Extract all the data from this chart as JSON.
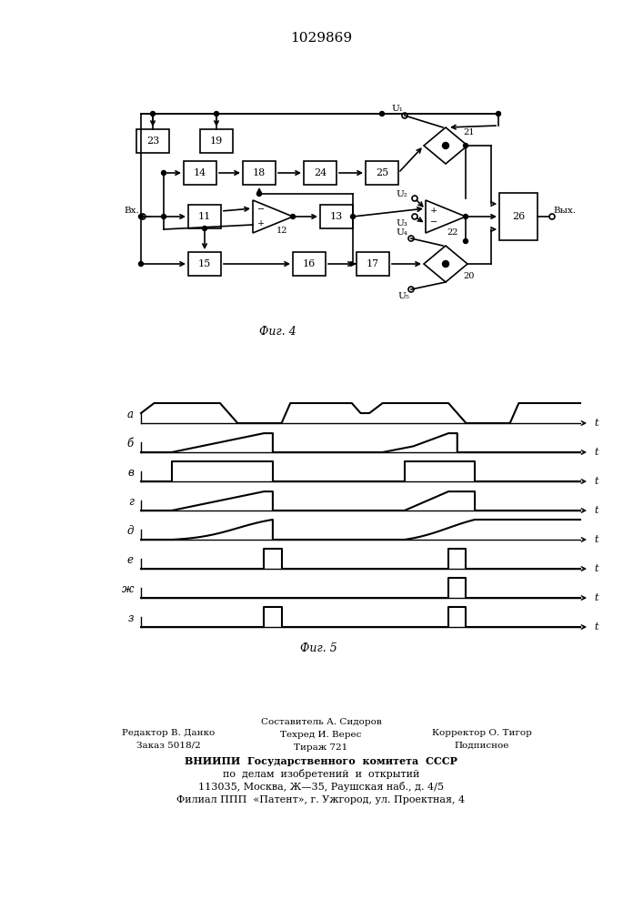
{
  "title": "1029869",
  "bg_color": "#ffffff",
  "line_color": "#000000",
  "footer_col1": [
    "Редактор В. Данко",
    "Заказ 5018/2"
  ],
  "footer_col2": [
    "Составитель А. Сидоров",
    "Техред И. Верес",
    "Тираж 721"
  ],
  "footer_col3": [
    "Корректор О. Тигор",
    "Подписное"
  ],
  "footer_bold": "ВНИИПИ  Государственного  комитета  СССР",
  "footer_line2": "по  делам  изобретений  и  открытий",
  "footer_line3": "113035, Москва, Ж—35, Раушская наб., д. 4/5",
  "footer_line4": "Филиал ППП  «Патент», г. Ужгород, ул. Проектная, 4",
  "waveform_labels": [
    "а",
    "б",
    "в",
    "г",
    "д",
    "е",
    "ж",
    "з"
  ]
}
